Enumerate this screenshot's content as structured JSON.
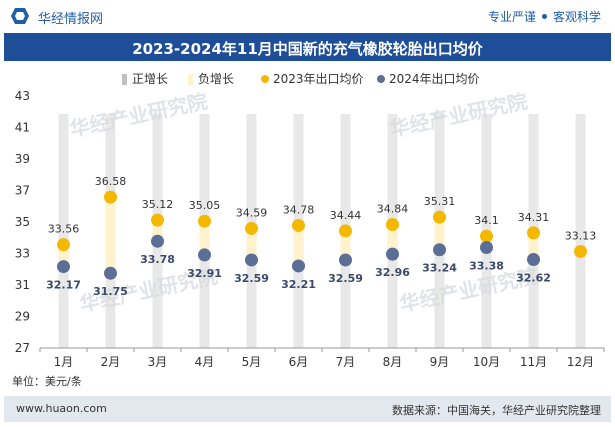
{
  "header": {
    "logo_text": "华经情报网",
    "slogan_left": "专业严谨",
    "slogan_right": "客观科学",
    "logo_icon": "hexagon-logo-icon"
  },
  "footer": {
    "unit": "单位：美元/条",
    "website": "www.huaon.com",
    "source": "数据来源：中国海关，华经产业研究院整理"
  },
  "watermark": "华经产业研究院",
  "colors": {
    "title_bg": "#1f4e99",
    "pos_bar": "#d9d9d9",
    "neg_bar": "#fff2cc",
    "series_2023": "#f5b800",
    "series_2024": "#5b6e95"
  },
  "chart_data": {
    "type": "line",
    "title": "2023-2024年11月中国新的充气橡胶轮胎出口均价",
    "categories": [
      "1月",
      "2月",
      "3月",
      "4月",
      "5月",
      "6月",
      "7月",
      "8月",
      "9月",
      "10月",
      "11月",
      "12月"
    ],
    "legend": [
      "正增长",
      "负增长",
      "2023年出口均价",
      "2024年出口均价"
    ],
    "series": [
      {
        "name": "2023年出口均价",
        "values": [
          33.56,
          36.58,
          35.12,
          35.05,
          34.59,
          34.78,
          34.44,
          34.84,
          35.31,
          34.1,
          34.31,
          33.13
        ],
        "labels": [
          "33.56",
          "36.58",
          "35.12",
          "35.05",
          "34.59",
          "34.78",
          "34.44",
          "34.84",
          "35.31",
          "34.1",
          "34.31",
          "33.13"
        ]
      },
      {
        "name": "2024年出口均价",
        "values": [
          32.17,
          31.75,
          33.78,
          32.91,
          32.59,
          32.21,
          32.59,
          32.96,
          33.24,
          33.38,
          32.62,
          null
        ],
        "labels": [
          "32.17",
          "31.75",
          "33.78",
          "32.91",
          "32.59",
          "32.21",
          "32.59",
          "32.96",
          "33.24",
          "33.38",
          "32.62",
          ""
        ]
      }
    ],
    "yticks": [
      "43",
      "41",
      "39",
      "37",
      "35",
      "33",
      "31",
      "29",
      "27"
    ],
    "ylim": [
      27,
      43
    ],
    "legend_position": "top"
  }
}
